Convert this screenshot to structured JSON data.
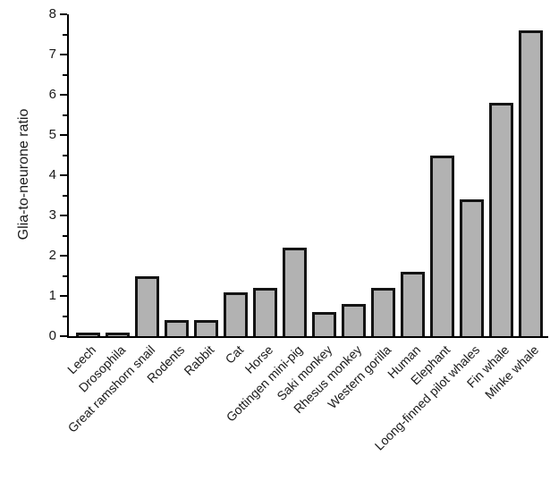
{
  "chart_data": {
    "type": "bar",
    "title": "",
    "ylabel": "Glia-to-neurone ratio",
    "xlabel": "",
    "categories": [
      "Leech",
      "Drosophila",
      "Great ramshorn snail",
      "Rodents",
      "Rabbit",
      "Cat",
      "Horse",
      "Gottingen mini-pig",
      "Saki monkey",
      "Rhesus monkey",
      "Western gorilla",
      "Human",
      "Elephant",
      "Loong-finned pilot whales",
      "Fin whale",
      "Minke whale"
    ],
    "values": [
      0.05,
      0.1,
      1.5,
      0.4,
      0.4,
      1.1,
      1.2,
      2.2,
      0.6,
      0.8,
      1.2,
      1.6,
      4.5,
      3.4,
      5.8,
      7.6
    ],
    "ylim": [
      0,
      8
    ],
    "y_major_tick_step": 1,
    "y_minor_tick_step": 0.5,
    "y_tick_labels": [
      "0",
      "1",
      "2",
      "3",
      "4",
      "5",
      "6",
      "7",
      "8"
    ],
    "grid": false,
    "legend": null,
    "colors": {
      "bar_fill": "#b2b2b2",
      "bar_border": "#141414",
      "axis": "#000000",
      "text": "#1a1a1a",
      "background": "#ffffff"
    }
  }
}
